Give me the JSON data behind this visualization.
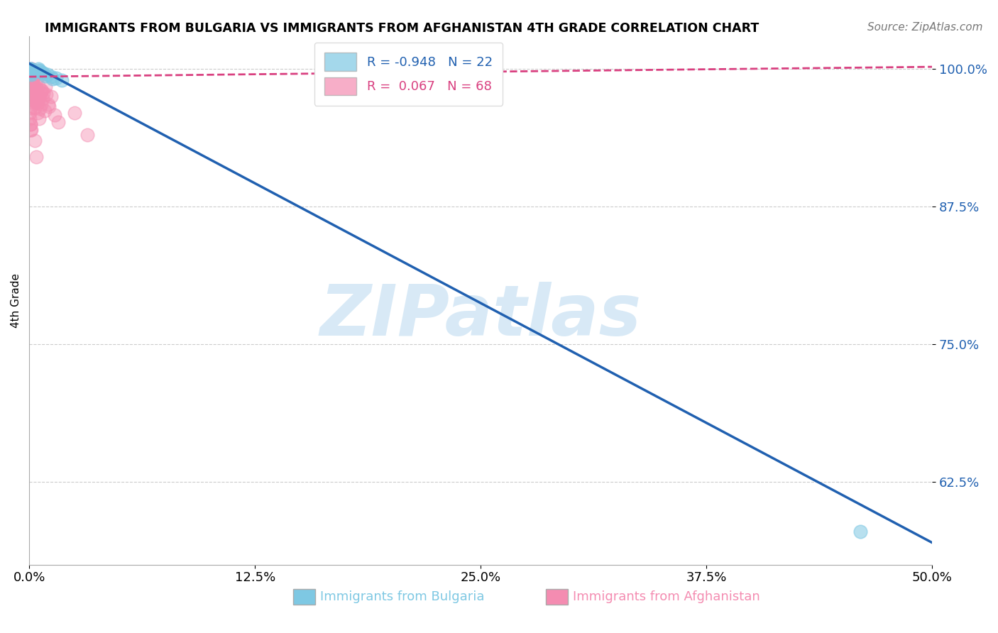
{
  "title": "IMMIGRANTS FROM BULGARIA VS IMMIGRANTS FROM AFGHANISTAN 4TH GRADE CORRELATION CHART",
  "source": "Source: ZipAtlas.com",
  "ylabel": "4th Grade",
  "xlabel_bulgaria": "Immigrants from Bulgaria",
  "xlabel_afghanistan": "Immigrants from Afghanistan",
  "xlim": [
    0.0,
    50.0
  ],
  "ylim": [
    55.0,
    103.0
  ],
  "yticks": [
    62.5,
    75.0,
    87.5,
    100.0
  ],
  "xticks": [
    0.0,
    12.5,
    25.0,
    37.5,
    50.0
  ],
  "bulgaria_R": -0.948,
  "bulgaria_N": 22,
  "afghanistan_R": 0.067,
  "afghanistan_N": 68,
  "bulgaria_color": "#7ec8e3",
  "afghanistan_color": "#f48cb1",
  "bulgaria_line_color": "#2060b0",
  "afghanistan_line_color": "#d94080",
  "watermark": "ZIPatlas",
  "bulgaria_line_x0": 0.0,
  "bulgaria_line_y0": 100.5,
  "bulgaria_line_x1": 50.0,
  "bulgaria_line_y1": 57.0,
  "afghanistan_line_x0": 0.0,
  "afghanistan_line_y0": 99.3,
  "afghanistan_line_x1": 50.0,
  "afghanistan_line_y1": 100.2,
  "bulgaria_scatter_x": [
    0.05,
    0.1,
    0.08,
    0.06,
    0.12,
    0.09,
    0.07,
    0.15,
    0.11,
    0.13,
    0.5,
    0.6,
    0.7,
    0.55,
    0.8,
    1.0,
    1.2,
    0.9,
    1.5,
    1.8,
    1.3,
    46.0
  ],
  "bulgaria_scatter_y": [
    100.0,
    99.9,
    100.0,
    99.8,
    99.9,
    100.0,
    99.7,
    99.8,
    99.6,
    99.5,
    100.0,
    99.8,
    99.7,
    99.9,
    99.6,
    99.5,
    99.3,
    99.4,
    99.2,
    99.0,
    99.1,
    58.0
  ],
  "afghanistan_scatter_x": [
    0.04,
    0.06,
    0.05,
    0.07,
    0.08,
    0.1,
    0.09,
    0.12,
    0.06,
    0.05,
    0.07,
    0.08,
    0.09,
    0.1,
    0.11,
    0.12,
    0.06,
    0.07,
    0.08,
    0.09,
    0.05,
    0.04,
    0.06,
    0.07,
    0.08,
    0.1,
    0.2,
    0.25,
    0.3,
    0.4,
    0.5,
    0.6,
    0.7,
    0.8,
    0.3,
    0.35,
    0.45,
    0.55,
    0.65,
    0.2,
    0.25,
    0.15,
    0.18,
    0.22,
    0.28,
    0.32,
    0.38,
    0.42,
    0.48,
    0.52,
    0.58,
    0.62,
    0.68,
    0.75,
    0.85,
    0.95,
    1.05,
    1.2,
    0.9,
    1.1,
    1.4,
    1.6,
    2.5,
    0.3,
    0.4,
    3.2,
    0.12,
    0.09
  ],
  "afghanistan_scatter_y": [
    100.0,
    99.9,
    99.8,
    99.7,
    99.9,
    100.0,
    99.8,
    99.7,
    99.6,
    99.5,
    99.4,
    99.3,
    99.2,
    99.8,
    99.9,
    100.0,
    98.5,
    97.5,
    98.0,
    97.0,
    96.0,
    95.5,
    96.5,
    95.0,
    94.5,
    97.8,
    99.0,
    98.5,
    98.0,
    99.0,
    98.5,
    97.5,
    98.0,
    97.8,
    96.5,
    97.0,
    96.0,
    95.5,
    96.8,
    98.8,
    97.2,
    99.1,
    98.7,
    99.3,
    98.2,
    97.6,
    98.3,
    97.1,
    96.9,
    97.4,
    96.4,
    97.9,
    98.1,
    97.3,
    96.2,
    97.7,
    96.8,
    97.5,
    98.4,
    96.6,
    95.8,
    95.2,
    96.0,
    93.5,
    92.0,
    94.0,
    94.5,
    95.0
  ]
}
